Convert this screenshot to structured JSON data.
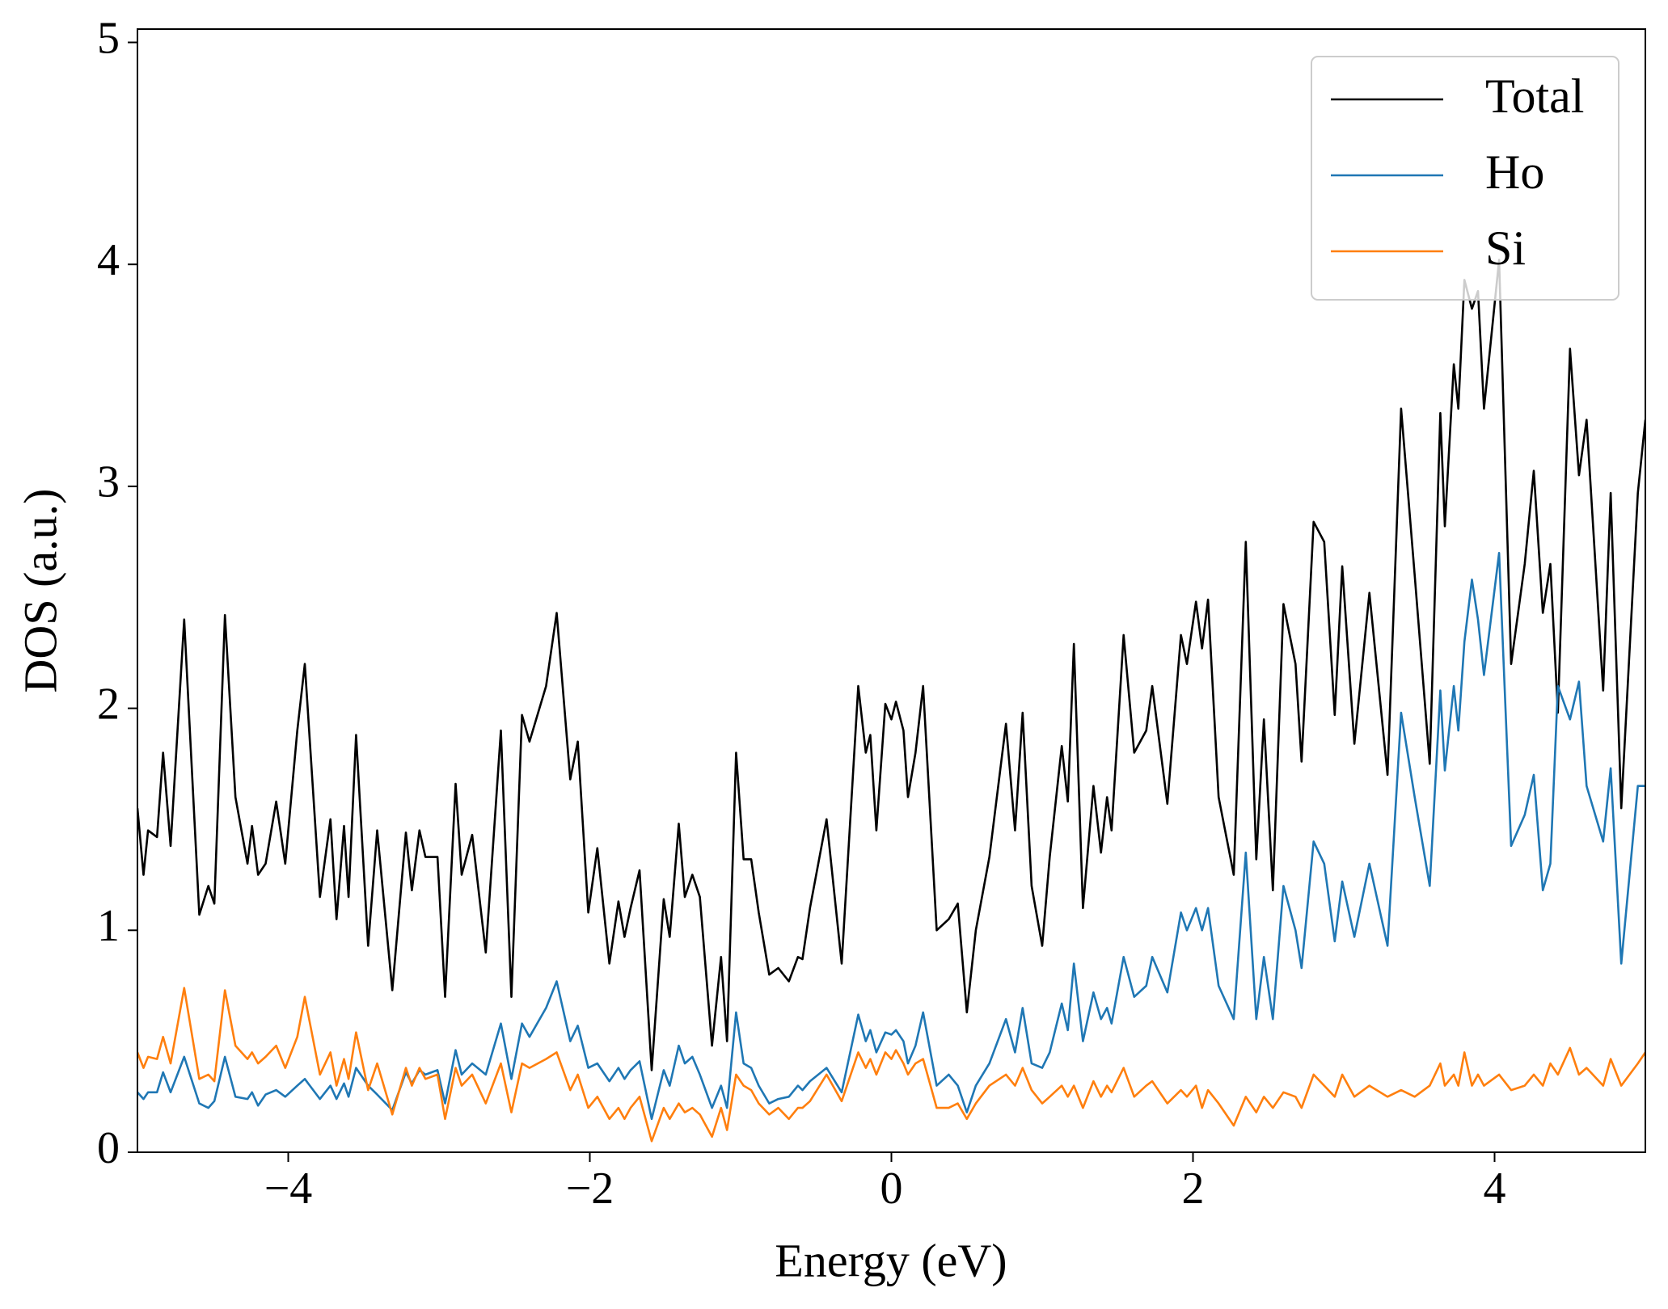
{
  "chart_data": {
    "type": "line",
    "x_label": "Energy (eV)",
    "y_label": "DOS (a.u.)",
    "xlim": [
      -5,
      5
    ],
    "ylim": [
      0,
      5.06
    ],
    "xticks": [
      {
        "value": -4,
        "label": "−4"
      },
      {
        "value": -2,
        "label": "−2"
      },
      0,
      2,
      4
    ],
    "yticks": [
      0,
      1,
      2,
      3,
      4,
      5
    ],
    "legend": "upper right",
    "x": [
      -5.0,
      -4.96,
      -4.93,
      -4.87,
      -4.83,
      -4.78,
      -4.69,
      -4.59,
      -4.53,
      -4.49,
      -4.42,
      -4.35,
      -4.27,
      -4.24,
      -4.2,
      -4.15,
      -4.08,
      -4.02,
      -3.94,
      -3.89,
      -3.79,
      -3.72,
      -3.68,
      -3.63,
      -3.6,
      -3.55,
      -3.47,
      -3.41,
      -3.31,
      -3.22,
      -3.18,
      -3.13,
      -3.09,
      -3.01,
      -2.96,
      -2.89,
      -2.85,
      -2.78,
      -2.69,
      -2.59,
      -2.52,
      -2.45,
      -2.4,
      -2.29,
      -2.22,
      -2.13,
      -2.08,
      -2.01,
      -1.95,
      -1.87,
      -1.81,
      -1.77,
      -1.73,
      -1.67,
      -1.59,
      -1.51,
      -1.47,
      -1.41,
      -1.37,
      -1.32,
      -1.27,
      -1.19,
      -1.13,
      -1.09,
      -1.03,
      -0.98,
      -0.93,
      -0.88,
      -0.81,
      -0.75,
      -0.68,
      -0.62,
      -0.59,
      -0.54,
      -0.43,
      -0.33,
      -0.22,
      -0.17,
      -0.14,
      -0.1,
      -0.04,
      0,
      0.03,
      0.08,
      0.11,
      0.16,
      0.21,
      0.3,
      0.38,
      0.44,
      0.5,
      0.56,
      0.65,
      0.76,
      0.82,
      0.87,
      0.93,
      1.0,
      1.05,
      1.13,
      1.17,
      1.21,
      1.27,
      1.34,
      1.39,
      1.43,
      1.46,
      1.54,
      1.61,
      1.69,
      1.73,
      1.83,
      1.92,
      1.96,
      2.02,
      2.06,
      2.1,
      2.17,
      2.27,
      2.35,
      2.42,
      2.47,
      2.53,
      2.6,
      2.68,
      2.72,
      2.8,
      2.87,
      2.94,
      2.99,
      3.07,
      3.17,
      3.29,
      3.38,
      3.47,
      3.57,
      3.64,
      3.67,
      3.73,
      3.76,
      3.8,
      3.85,
      3.89,
      3.93,
      4.03,
      4.11,
      4.2,
      4.26,
      4.32,
      4.37,
      4.42,
      4.5,
      4.56,
      4.61,
      4.72,
      4.77,
      4.84,
      4.95,
      5.0
    ],
    "series": [
      {
        "name": "Total",
        "color": "#000000",
        "values": [
          1.55,
          1.25,
          1.45,
          1.42,
          1.8,
          1.38,
          2.4,
          1.07,
          1.2,
          1.12,
          2.42,
          1.6,
          1.3,
          1.47,
          1.25,
          1.3,
          1.58,
          1.3,
          1.9,
          2.2,
          1.15,
          1.5,
          1.05,
          1.47,
          1.15,
          1.88,
          0.93,
          1.45,
          0.73,
          1.44,
          1.18,
          1.45,
          1.33,
          1.33,
          0.7,
          1.66,
          1.25,
          1.43,
          0.9,
          1.9,
          0.7,
          1.97,
          1.85,
          2.1,
          2.43,
          1.68,
          1.85,
          1.08,
          1.37,
          0.85,
          1.13,
          0.97,
          1.1,
          1.27,
          0.37,
          1.14,
          0.97,
          1.48,
          1.15,
          1.25,
          1.15,
          0.48,
          0.88,
          0.5,
          1.8,
          1.32,
          1.32,
          1.08,
          0.8,
          0.83,
          0.77,
          0.88,
          0.87,
          1.1,
          1.5,
          0.85,
          2.1,
          1.8,
          1.88,
          1.45,
          2.02,
          1.95,
          2.03,
          1.9,
          1.6,
          1.8,
          2.1,
          1.0,
          1.05,
          1.12,
          0.63,
          1.0,
          1.33,
          1.93,
          1.45,
          1.98,
          1.2,
          0.93,
          1.33,
          1.83,
          1.58,
          2.29,
          1.1,
          1.65,
          1.35,
          1.6,
          1.45,
          2.33,
          1.8,
          1.9,
          2.1,
          1.57,
          2.33,
          2.2,
          2.48,
          2.27,
          2.49,
          1.6,
          1.25,
          2.75,
          1.32,
          1.95,
          1.18,
          2.47,
          2.2,
          1.76,
          2.84,
          2.75,
          1.97,
          2.64,
          1.84,
          2.52,
          1.7,
          3.35,
          2.6,
          1.75,
          3.33,
          2.82,
          3.55,
          3.35,
          3.93,
          3.8,
          3.88,
          3.35,
          4.02,
          2.2,
          2.65,
          3.07,
          2.43,
          2.65,
          1.98,
          3.62,
          3.05,
          3.3,
          2.08,
          2.97,
          1.55,
          2.97,
          3.3
        ]
      },
      {
        "name": "Ho",
        "color": "#1f77b4",
        "values": [
          0.27,
          0.24,
          0.27,
          0.27,
          0.36,
          0.27,
          0.43,
          0.22,
          0.2,
          0.23,
          0.43,
          0.25,
          0.24,
          0.27,
          0.21,
          0.26,
          0.28,
          0.25,
          0.3,
          0.33,
          0.24,
          0.3,
          0.24,
          0.31,
          0.25,
          0.38,
          0.3,
          0.26,
          0.19,
          0.36,
          0.31,
          0.37,
          0.35,
          0.37,
          0.22,
          0.46,
          0.35,
          0.4,
          0.35,
          0.58,
          0.33,
          0.58,
          0.52,
          0.65,
          0.77,
          0.5,
          0.57,
          0.38,
          0.4,
          0.32,
          0.38,
          0.33,
          0.37,
          0.41,
          0.15,
          0.37,
          0.3,
          0.48,
          0.4,
          0.43,
          0.35,
          0.2,
          0.3,
          0.2,
          0.63,
          0.4,
          0.38,
          0.3,
          0.22,
          0.24,
          0.25,
          0.3,
          0.28,
          0.32,
          0.38,
          0.27,
          0.62,
          0.5,
          0.55,
          0.45,
          0.54,
          0.53,
          0.55,
          0.5,
          0.4,
          0.48,
          0.63,
          0.3,
          0.35,
          0.3,
          0.18,
          0.3,
          0.4,
          0.6,
          0.45,
          0.65,
          0.4,
          0.38,
          0.45,
          0.67,
          0.55,
          0.85,
          0.5,
          0.72,
          0.6,
          0.65,
          0.58,
          0.88,
          0.7,
          0.75,
          0.88,
          0.72,
          1.08,
          1.0,
          1.1,
          1.0,
          1.1,
          0.75,
          0.6,
          1.35,
          0.6,
          0.88,
          0.6,
          1.2,
          1.0,
          0.83,
          1.4,
          1.3,
          0.95,
          1.22,
          0.97,
          1.3,
          0.93,
          1.98,
          1.6,
          1.2,
          2.08,
          1.72,
          2.1,
          1.9,
          2.3,
          2.58,
          2.4,
          2.15,
          2.7,
          1.38,
          1.52,
          1.7,
          1.18,
          1.3,
          2.1,
          1.95,
          2.12,
          1.65,
          1.4,
          1.73,
          0.85,
          1.65,
          1.65
        ]
      },
      {
        "name": "Si",
        "color": "#ff7f0e",
        "values": [
          0.45,
          0.38,
          0.43,
          0.42,
          0.52,
          0.4,
          0.74,
          0.33,
          0.35,
          0.32,
          0.73,
          0.48,
          0.42,
          0.45,
          0.4,
          0.43,
          0.48,
          0.38,
          0.52,
          0.7,
          0.35,
          0.45,
          0.3,
          0.42,
          0.33,
          0.54,
          0.28,
          0.4,
          0.17,
          0.38,
          0.3,
          0.38,
          0.33,
          0.35,
          0.15,
          0.38,
          0.3,
          0.35,
          0.22,
          0.4,
          0.18,
          0.4,
          0.38,
          0.42,
          0.45,
          0.28,
          0.35,
          0.2,
          0.25,
          0.15,
          0.2,
          0.15,
          0.2,
          0.25,
          0.05,
          0.2,
          0.15,
          0.22,
          0.18,
          0.2,
          0.17,
          0.07,
          0.2,
          0.1,
          0.35,
          0.3,
          0.28,
          0.22,
          0.17,
          0.2,
          0.15,
          0.2,
          0.2,
          0.23,
          0.35,
          0.23,
          0.45,
          0.38,
          0.42,
          0.35,
          0.45,
          0.42,
          0.46,
          0.4,
          0.35,
          0.4,
          0.42,
          0.2,
          0.2,
          0.22,
          0.15,
          0.22,
          0.3,
          0.35,
          0.3,
          0.38,
          0.28,
          0.22,
          0.25,
          0.3,
          0.25,
          0.3,
          0.2,
          0.32,
          0.25,
          0.3,
          0.27,
          0.38,
          0.25,
          0.3,
          0.32,
          0.22,
          0.28,
          0.25,
          0.3,
          0.2,
          0.28,
          0.22,
          0.12,
          0.25,
          0.18,
          0.25,
          0.2,
          0.27,
          0.25,
          0.2,
          0.35,
          0.3,
          0.25,
          0.35,
          0.25,
          0.3,
          0.25,
          0.28,
          0.25,
          0.3,
          0.4,
          0.3,
          0.35,
          0.3,
          0.45,
          0.3,
          0.35,
          0.3,
          0.35,
          0.28,
          0.3,
          0.35,
          0.3,
          0.4,
          0.35,
          0.47,
          0.35,
          0.38,
          0.3,
          0.42,
          0.3,
          0.4,
          0.45
        ]
      }
    ]
  }
}
